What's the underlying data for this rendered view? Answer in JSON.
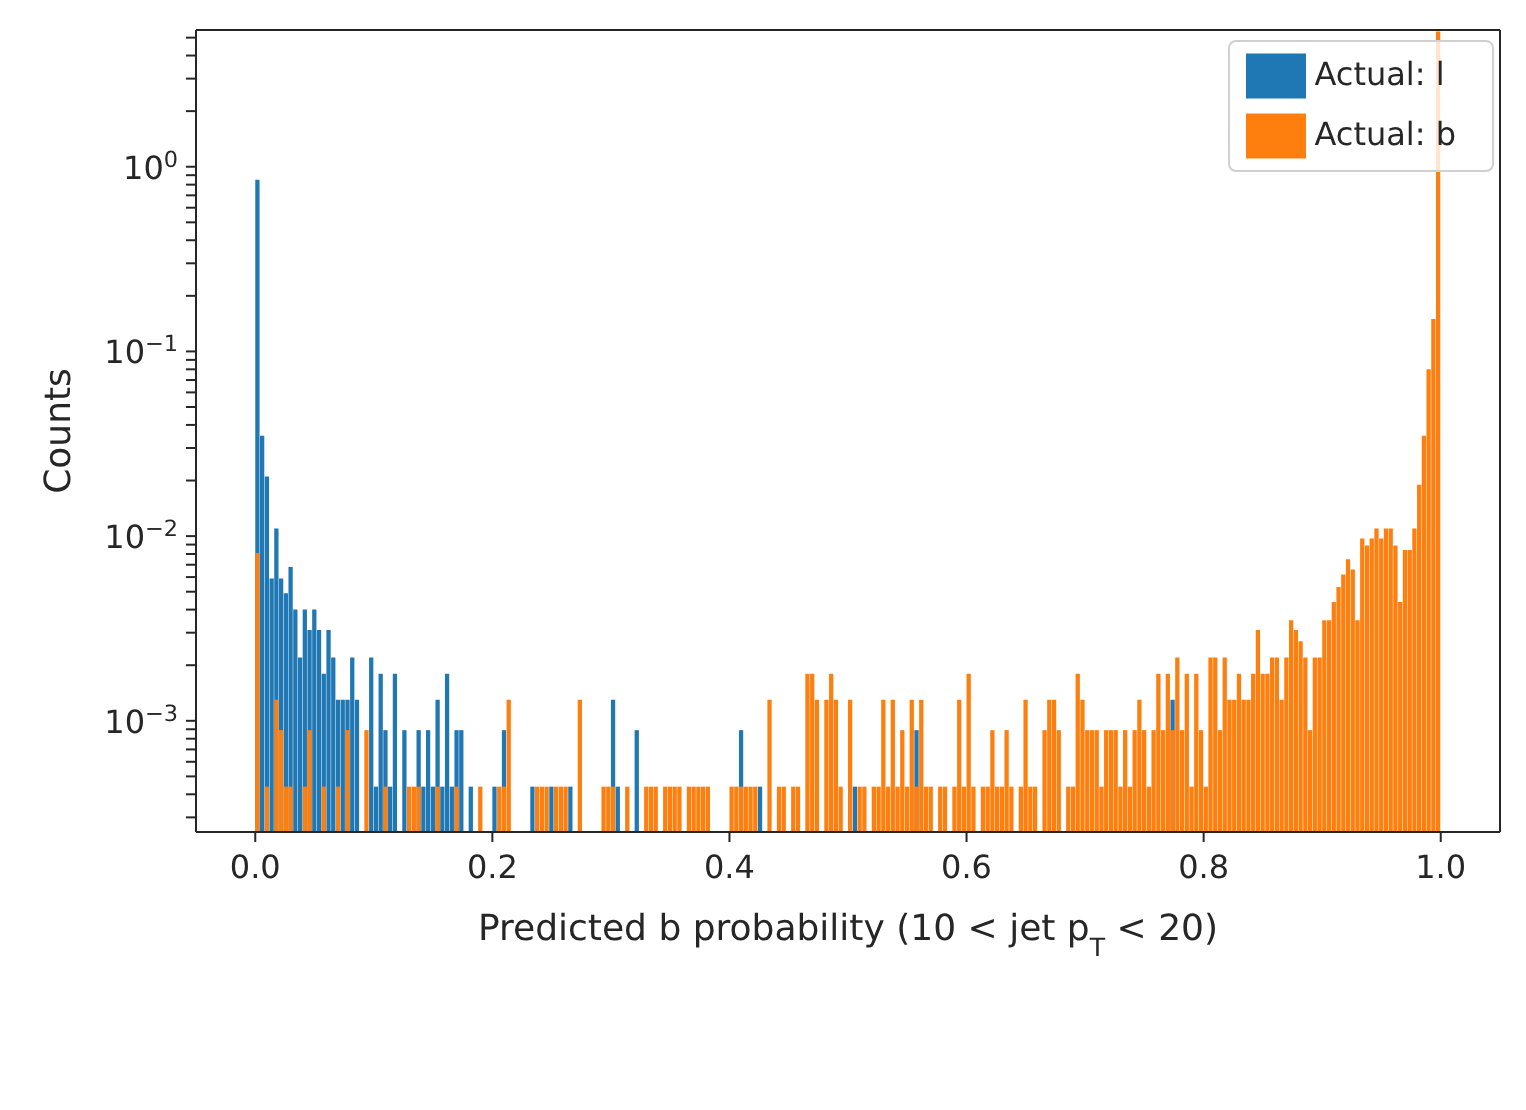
{
  "chart_data": {
    "type": "histogram",
    "xlabel": "Predicted b probability (10 < jet p$_{T}$ < 20)",
    "ylabel": "Counts",
    "log": true,
    "legend": "top right",
    "xlim": [
      -0.05,
      1.05
    ],
    "ylim": [
      0.00025,
      5.5
    ],
    "xticks": [
      {
        "value": 0,
        "label": "0.0"
      },
      0.2,
      0.4,
      0.6,
      0.8,
      {
        "value": 1,
        "label": "1.0"
      }
    ],
    "yticks": [
      {
        "value": 0.0003,
        "label": null
      },
      {
        "value": 0.0004,
        "label": null
      },
      {
        "value": 0.0005,
        "label": null
      },
      {
        "value": 0.0006,
        "label": null
      },
      {
        "value": 0.0007,
        "label": null
      },
      {
        "value": 0.0008,
        "label": null
      },
      {
        "value": 0.0009,
        "label": null
      },
      {
        "value": 0.001,
        "label": "10$^{−3}$"
      },
      {
        "value": 0.002,
        "label": null
      },
      {
        "value": 0.003,
        "label": null
      },
      {
        "value": 0.004,
        "label": null
      },
      {
        "value": 0.005,
        "label": null
      },
      {
        "value": 0.006,
        "label": null
      },
      {
        "value": 0.007,
        "label": null
      },
      {
        "value": 0.008,
        "label": null
      },
      {
        "value": 0.009,
        "label": null
      },
      {
        "value": 0.01,
        "label": "10$^{−2}$"
      },
      {
        "value": 0.02,
        "label": null
      },
      {
        "value": 0.03,
        "label": null
      },
      {
        "value": 0.04,
        "label": null
      },
      {
        "value": 0.05,
        "label": null
      },
      {
        "value": 0.06,
        "label": null
      },
      {
        "value": 0.07,
        "label": null
      },
      {
        "value": 0.08,
        "label": null
      },
      {
        "value": 0.09,
        "label": null
      },
      {
        "value": 0.1,
        "label": "10$^{−1}$"
      },
      {
        "value": 0.2,
        "label": null
      },
      {
        "value": 0.3,
        "label": null
      },
      {
        "value": 0.4,
        "label": null
      },
      {
        "value": 0.5,
        "label": null
      },
      {
        "value": 0.6,
        "label": null
      },
      {
        "value": 0.7,
        "label": null
      },
      {
        "value": 0.8,
        "label": null
      },
      {
        "value": 0.9,
        "label": null
      },
      {
        "value": 1,
        "label": "10$^{0}$"
      },
      {
        "value": 2,
        "label": null
      },
      {
        "value": 3,
        "label": null
      },
      {
        "value": 4,
        "label": null
      },
      {
        "value": 5,
        "label": null
      }
    ],
    "bins": [
      0,
      0.004,
      0.008,
      0.012,
      0.016,
      0.02,
      0.024,
      0.028,
      0.032,
      0.036,
      0.04,
      0.044,
      0.048,
      0.052,
      0.056,
      0.06,
      0.064,
      0.068,
      0.072,
      0.076,
      0.08,
      0.084,
      0.088,
      0.092,
      0.096,
      0.1,
      0.104,
      0.108,
      0.112,
      0.116,
      0.12,
      0.124,
      0.128,
      0.132,
      0.136,
      0.14,
      0.144,
      0.148,
      0.152,
      0.156,
      0.16,
      0.164,
      0.168,
      0.172,
      0.176,
      0.18,
      0.184,
      0.188,
      0.192,
      0.196,
      0.2,
      0.204,
      0.208,
      0.212,
      0.216,
      0.22,
      0.224,
      0.228,
      0.232,
      0.236,
      0.24,
      0.244,
      0.248,
      0.252,
      0.256,
      0.26,
      0.264,
      0.268,
      0.272,
      0.276,
      0.28,
      0.284,
      0.288,
      0.292,
      0.296,
      0.3,
      0.304,
      0.308,
      0.312,
      0.316,
      0.32,
      0.324,
      0.328,
      0.332,
      0.336,
      0.34,
      0.344,
      0.348,
      0.352,
      0.356,
      0.36,
      0.364,
      0.368,
      0.372,
      0.376,
      0.38,
      0.384,
      0.388,
      0.392,
      0.396,
      0.4,
      0.404,
      0.408,
      0.412,
      0.416,
      0.42,
      0.424,
      0.428,
      0.432,
      0.436,
      0.44,
      0.444,
      0.448,
      0.452,
      0.456,
      0.46,
      0.464,
      0.468,
      0.472,
      0.476,
      0.48,
      0.484,
      0.488,
      0.492,
      0.496,
      0.5,
      0.504,
      0.508,
      0.512,
      0.516,
      0.52,
      0.524,
      0.528,
      0.532,
      0.536,
      0.54,
      0.544,
      0.548,
      0.552,
      0.556,
      0.56,
      0.564,
      0.568,
      0.572,
      0.576,
      0.58,
      0.584,
      0.588,
      0.592,
      0.596,
      0.6,
      0.604,
      0.608,
      0.612,
      0.616,
      0.62,
      0.624,
      0.628,
      0.632,
      0.636,
      0.64,
      0.644,
      0.648,
      0.652,
      0.656,
      0.66,
      0.664,
      0.668,
      0.672,
      0.676,
      0.68,
      0.684,
      0.688,
      0.692,
      0.696,
      0.7,
      0.704,
      0.708,
      0.712,
      0.716,
      0.72,
      0.724,
      0.728,
      0.732,
      0.736,
      0.74,
      0.744,
      0.748,
      0.752,
      0.756,
      0.76,
      0.764,
      0.768,
      0.772,
      0.776,
      0.78,
      0.784,
      0.788,
      0.792,
      0.796,
      0.8,
      0.804,
      0.808,
      0.812,
      0.816,
      0.82,
      0.824,
      0.828,
      0.832,
      0.836,
      0.84,
      0.844,
      0.848,
      0.852,
      0.856,
      0.86,
      0.864,
      0.868,
      0.872,
      0.876,
      0.88,
      0.884,
      0.888,
      0.892,
      0.896,
      0.9,
      0.904,
      0.908,
      0.912,
      0.916,
      0.92,
      0.924,
      0.928,
      0.932,
      0.936,
      0.94,
      0.944,
      0.948,
      0.952,
      0.956,
      0.96,
      0.964,
      0.968,
      0.972,
      0.976,
      0.98,
      0.984,
      0.988,
      0.992,
      0.996,
      1
    ],
    "series": [
      {
        "name": "Actual: l",
        "color": "#1f77b4",
        "values": [
          0.85,
          0.035,
          0.021,
          0.0059,
          0.011,
          0.0059,
          0.0049,
          0.0068,
          0.004,
          0.0022,
          0.004,
          0.0031,
          0.004,
          0.0031,
          0.0018,
          0.0031,
          0.0022,
          0.0013,
          0.0013,
          0.0013,
          0.0022,
          0.0013,
          null,
          null,
          0.0022,
          0.00044,
          0.0018,
          0.00089,
          0.00044,
          0.0018,
          null,
          0.00089,
          null,
          null,
          0.00089,
          0.00044,
          0.00089,
          0.00044,
          0.0013,
          0.00044,
          0.0018,
          0.00044,
          0.00089,
          0.00089,
          null,
          0.00044,
          null,
          null,
          null,
          null,
          0.00044,
          null,
          0.00089,
          null,
          null,
          null,
          null,
          null,
          0.00044,
          null,
          null,
          null,
          0.00044,
          null,
          null,
          null,
          0.00044,
          null,
          null,
          null,
          null,
          null,
          null,
          null,
          null,
          0.0013,
          0.00044,
          null,
          null,
          null,
          0.00089,
          null,
          null,
          null,
          null,
          null,
          null,
          null,
          null,
          null,
          null,
          null,
          null,
          null,
          null,
          null,
          null,
          null,
          null,
          null,
          null,
          null,
          0.00089,
          null,
          null,
          null,
          0.00044,
          null,
          null,
          null,
          null,
          null,
          null,
          null,
          null,
          null,
          null,
          null,
          null,
          null,
          null,
          null,
          null,
          null,
          null,
          null,
          0.00044,
          null,
          null,
          null,
          null,
          null,
          null,
          null,
          null,
          null,
          null,
          null,
          null,
          0.00089,
          null,
          null,
          null,
          null,
          null,
          null,
          null,
          null,
          null,
          null,
          null,
          null,
          null,
          null,
          null,
          null,
          null,
          null,
          null,
          null,
          null,
          null,
          null,
          null,
          null,
          null,
          null,
          null,
          null,
          null,
          null,
          null,
          null,
          null,
          null,
          null,
          null,
          null,
          null,
          null,
          null,
          null,
          null,
          null,
          null,
          null,
          null,
          null,
          null,
          null,
          null,
          null,
          null,
          0.0013,
          null,
          null,
          null,
          null,
          null,
          null,
          null,
          null,
          null,
          null,
          null,
          null,
          null,
          null,
          null,
          null,
          null,
          null,
          null,
          null,
          null,
          null,
          null,
          null,
          null,
          null,
          null,
          null,
          null,
          null,
          null,
          null,
          null,
          null,
          null,
          null,
          null,
          null,
          null,
          null,
          null,
          null,
          null,
          null,
          null,
          null,
          null,
          null,
          null,
          null,
          null,
          null,
          null,
          null,
          null,
          null
        ]
      },
      {
        "name": "Actual: b",
        "color": "#ff7f0e",
        "values": [
          0.0081,
          null,
          0.00044,
          null,
          0.0013,
          0.00089,
          0.00044,
          0.00044,
          null,
          null,
          0.00044,
          0.00089,
          null,
          null,
          0.00044,
          null,
          null,
          0.00044,
          null,
          0.00089,
          null,
          null,
          null,
          0.00089,
          null,
          null,
          null,
          0.00044,
          null,
          null,
          null,
          null,
          0.00044,
          0.00044,
          0.00044,
          null,
          null,
          null,
          0.00044,
          null,
          null,
          null,
          0.00044,
          null,
          null,
          null,
          null,
          0.00044,
          null,
          null,
          null,
          0.00044,
          0.00044,
          0.0013,
          null,
          null,
          null,
          null,
          null,
          0.00044,
          0.00044,
          0.00044,
          null,
          0.00044,
          0.00044,
          0.00044,
          null,
          null,
          0.0013,
          null,
          null,
          null,
          null,
          0.00044,
          0.00044,
          0.00044,
          null,
          null,
          0.00044,
          null,
          null,
          null,
          0.00044,
          0.00044,
          0.00044,
          null,
          0.00044,
          0.00044,
          0.00044,
          0.00044,
          null,
          0.00044,
          0.00044,
          0.00044,
          0.00044,
          0.00044,
          null,
          null,
          null,
          null,
          0.00044,
          0.00044,
          0.00044,
          0.00044,
          0.00044,
          0.00044,
          null,
          null,
          0.0013,
          null,
          0.00044,
          0.00044,
          null,
          0.00044,
          0.00044,
          null,
          0.0018,
          0.0018,
          0.0013,
          null,
          0.0013,
          0.0018,
          0.0013,
          0.00044,
          null,
          0.0013,
          null,
          0.00044,
          0.00044,
          null,
          0.00044,
          0.00044,
          0.0013,
          0.00044,
          0.0013,
          0.00044,
          0.00089,
          0.00044,
          0.0013,
          0.00044,
          0.0013,
          0.00044,
          0.00044,
          null,
          0.00044,
          0.00044,
          null,
          0.00044,
          0.0013,
          0.00044,
          0.0018,
          0.00044,
          null,
          0.00044,
          0.00044,
          0.00089,
          0.00044,
          0.00044,
          0.00089,
          0.00044,
          null,
          0.00044,
          0.0013,
          0.00044,
          0.00044,
          null,
          0.00089,
          0.0013,
          0.0013,
          0.00089,
          null,
          0.00044,
          0.00044,
          0.0018,
          0.0013,
          0.00089,
          0.00089,
          0.00089,
          0.00044,
          0.00089,
          0.00089,
          0.00089,
          0.00044,
          0.00089,
          0.00044,
          0.00089,
          0.0013,
          0.00089,
          0.00044,
          0.00089,
          0.0018,
          0.00089,
          0.0018,
          0.00089,
          0.0022,
          0.00089,
          0.0018,
          0.00044,
          0.0018,
          0.00089,
          0.00044,
          0.0022,
          0.0022,
          0.00089,
          0.0022,
          0.0013,
          0.0013,
          0.0018,
          0.0013,
          0.0013,
          0.0018,
          0.0031,
          0.0018,
          0.0018,
          0.0022,
          0.0022,
          0.0013,
          0.0022,
          0.0035,
          0.0031,
          0.0027,
          0.0022,
          0.00089,
          0.0022,
          0.0022,
          0.0035,
          0.0035,
          0.0044,
          0.0053,
          0.0062,
          0.0075,
          0.0066,
          0.0035,
          0.0097,
          0.0089,
          0.0097,
          0.011,
          0.0097,
          0.011,
          0.011,
          0.0089,
          0.0044,
          0.0084,
          0.0084,
          0.011,
          0.019,
          0.035,
          0.08,
          0.15,
          5.4
        ]
      }
    ]
  }
}
